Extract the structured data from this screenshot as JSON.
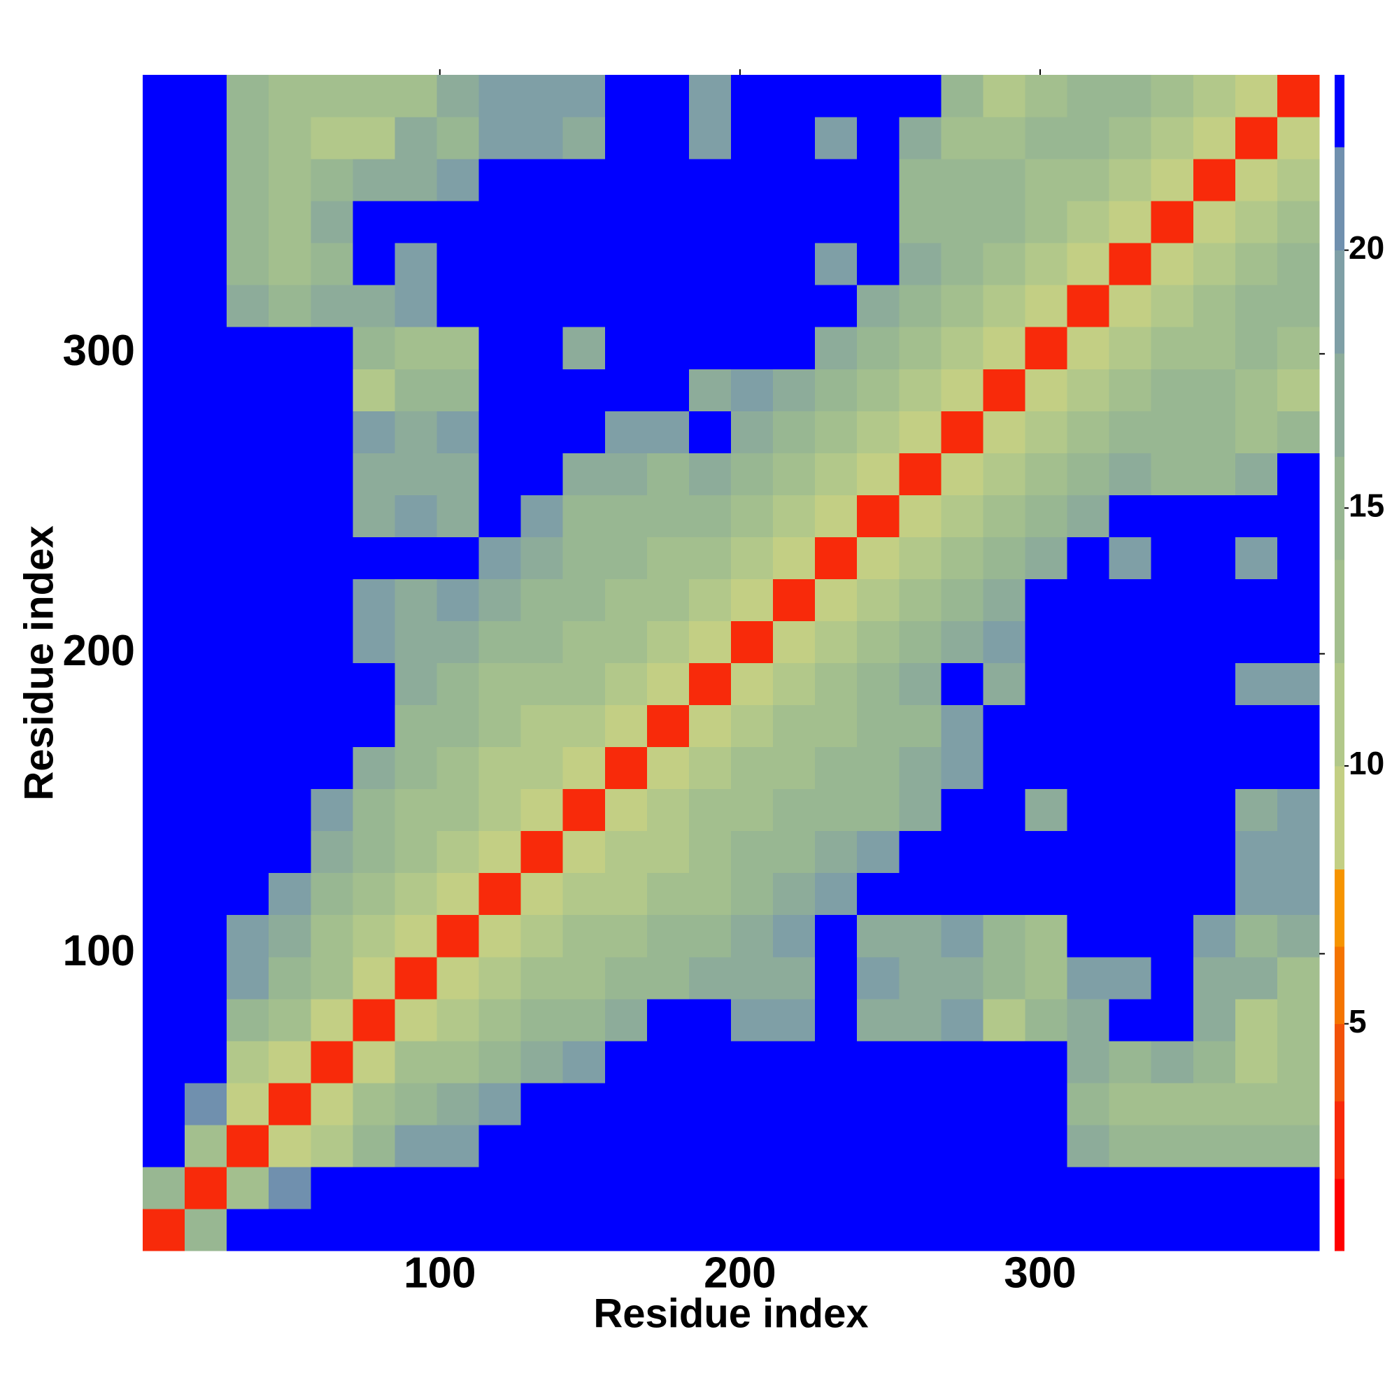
{
  "chart_data": {
    "type": "heatmap",
    "xlabel": "Residue index",
    "ylabel": "Residue index",
    "xlim": [
      1,
      393
    ],
    "ylim": [
      1,
      393
    ],
    "xticks": [
      100,
      200,
      300
    ],
    "yticks": [
      100,
      200,
      300
    ],
    "xbins": [
      1,
      15,
      29,
      43,
      57,
      71,
      85,
      99,
      113,
      127,
      141,
      155,
      169,
      183,
      197,
      211,
      225,
      239,
      253,
      267,
      281,
      295,
      309,
      323,
      337,
      351,
      365,
      379,
      393
    ],
    "ybins": [
      1,
      15,
      29,
      43,
      57,
      71,
      85,
      99,
      113,
      127,
      141,
      155,
      169,
      183,
      197,
      211,
      225,
      239,
      253,
      267,
      281,
      295,
      309,
      323,
      337,
      351,
      365,
      379,
      393
    ],
    "z": [
      [
        3,
        14,
        23,
        23,
        23,
        23,
        23,
        23,
        23,
        23,
        23,
        23,
        23,
        23,
        23,
        23,
        23,
        23,
        23,
        23,
        23,
        23,
        23,
        23,
        23,
        23,
        23,
        23
      ],
      [
        14,
        3,
        12,
        20,
        23,
        23,
        23,
        23,
        23,
        23,
        23,
        23,
        23,
        23,
        23,
        23,
        23,
        23,
        23,
        23,
        23,
        23,
        23,
        23,
        23,
        23,
        23,
        23
      ],
      [
        23,
        12,
        3,
        9,
        11,
        14,
        18,
        19,
        23,
        23,
        23,
        23,
        23,
        23,
        23,
        23,
        23,
        23,
        23,
        23,
        23,
        23,
        16,
        15,
        15,
        14,
        14,
        15
      ],
      [
        23,
        20,
        9,
        3,
        9,
        12,
        14,
        16,
        18,
        23,
        23,
        23,
        23,
        23,
        23,
        23,
        23,
        23,
        23,
        23,
        23,
        23,
        15,
        12,
        13,
        13,
        12,
        12
      ],
      [
        23,
        23,
        11,
        9,
        3,
        9,
        12,
        13,
        15,
        16,
        18,
        23,
        23,
        23,
        23,
        23,
        23,
        23,
        23,
        23,
        23,
        23,
        17,
        14,
        16,
        14,
        10,
        12
      ],
      [
        23,
        23,
        14,
        12,
        9,
        3,
        9,
        11,
        13,
        14,
        15,
        17,
        23,
        23,
        18,
        18,
        23,
        17,
        16,
        18,
        11,
        14,
        17,
        23,
        23,
        16,
        11,
        12
      ],
      [
        23,
        23,
        18,
        14,
        12,
        9,
        3,
        9,
        10,
        12,
        13,
        14,
        15,
        16,
        17,
        17,
        23,
        18,
        17,
        17,
        15,
        13,
        18,
        18,
        23,
        16,
        16,
        13
      ],
      [
        23,
        23,
        19,
        16,
        13,
        11,
        9,
        3,
        8,
        10,
        12,
        13,
        14,
        15,
        17,
        18,
        23,
        17,
        17,
        18,
        14,
        12,
        23,
        23,
        23,
        18,
        14,
        16
      ],
      [
        23,
        23,
        23,
        18,
        15,
        13,
        10,
        8,
        3,
        8,
        10,
        11,
        12,
        13,
        15,
        17,
        19,
        23,
        23,
        23,
        23,
        23,
        23,
        23,
        23,
        23,
        19,
        19
      ],
      [
        23,
        23,
        23,
        23,
        16,
        14,
        12,
        10,
        8,
        3,
        9,
        10,
        11,
        12,
        14,
        15,
        16,
        18,
        23,
        23,
        23,
        23,
        23,
        23,
        23,
        23,
        19,
        19
      ],
      [
        23,
        23,
        23,
        23,
        18,
        15,
        13,
        12,
        10,
        9,
        3,
        9,
        10,
        12,
        13,
        14,
        14,
        15,
        17,
        23,
        23,
        17,
        23,
        23,
        23,
        23,
        17,
        18
      ],
      [
        23,
        23,
        23,
        23,
        23,
        17,
        14,
        13,
        11,
        10,
        9,
        3,
        8,
        10,
        12,
        13,
        14,
        15,
        17,
        19,
        23,
        23,
        23,
        23,
        23,
        23,
        23,
        23
      ],
      [
        23,
        23,
        23,
        23,
        23,
        23,
        15,
        14,
        12,
        11,
        10,
        8,
        3,
        8,
        10,
        12,
        13,
        14,
        15,
        18,
        23,
        23,
        23,
        23,
        23,
        23,
        23,
        23
      ],
      [
        23,
        23,
        23,
        23,
        23,
        23,
        16,
        15,
        13,
        12,
        12,
        10,
        8,
        3,
        8,
        10,
        12,
        14,
        16,
        23,
        17,
        23,
        23,
        23,
        23,
        23,
        19,
        18
      ],
      [
        23,
        23,
        23,
        23,
        23,
        18,
        17,
        17,
        15,
        14,
        13,
        12,
        10,
        8,
        3,
        8,
        10,
        12,
        14,
        16,
        18,
        23,
        23,
        23,
        23,
        23,
        23,
        23
      ],
      [
        23,
        23,
        23,
        23,
        23,
        18,
        17,
        18,
        17,
        15,
        14,
        13,
        12,
        10,
        8,
        3,
        8,
        10,
        12,
        14,
        16,
        23,
        23,
        23,
        23,
        23,
        23,
        23
      ],
      [
        23,
        23,
        23,
        23,
        23,
        23,
        23,
        23,
        19,
        16,
        14,
        14,
        13,
        12,
        10,
        8,
        3,
        8,
        10,
        12,
        14,
        16,
        23,
        18,
        23,
        23,
        18,
        23
      ],
      [
        23,
        23,
        23,
        23,
        23,
        17,
        18,
        17,
        23,
        18,
        15,
        15,
        14,
        14,
        12,
        10,
        8,
        3,
        8,
        10,
        12,
        14,
        17,
        23,
        23,
        23,
        23,
        23
      ],
      [
        23,
        23,
        23,
        23,
        23,
        16,
        17,
        17,
        23,
        23,
        17,
        17,
        15,
        16,
        14,
        12,
        10,
        8,
        3,
        8,
        10,
        12,
        14,
        16,
        15,
        15,
        16,
        23
      ],
      [
        23,
        23,
        23,
        23,
        23,
        18,
        17,
        18,
        23,
        23,
        23,
        19,
        18,
        23,
        16,
        14,
        12,
        10,
        8,
        3,
        8,
        10,
        12,
        14,
        14,
        14,
        12,
        14
      ],
      [
        23,
        23,
        23,
        23,
        23,
        11,
        15,
        14,
        23,
        23,
        23,
        23,
        23,
        17,
        18,
        16,
        14,
        12,
        10,
        8,
        3,
        8,
        10,
        12,
        14,
        14,
        13,
        11
      ],
      [
        23,
        23,
        23,
        23,
        23,
        14,
        13,
        12,
        23,
        23,
        17,
        23,
        23,
        23,
        23,
        23,
        16,
        14,
        12,
        10,
        8,
        3,
        8,
        10,
        12,
        13,
        14,
        12
      ],
      [
        23,
        23,
        16,
        15,
        17,
        17,
        18,
        23,
        23,
        23,
        23,
        23,
        23,
        23,
        23,
        23,
        23,
        17,
        14,
        12,
        10,
        8,
        3,
        8,
        10,
        12,
        14,
        15
      ],
      [
        23,
        23,
        15,
        12,
        14,
        23,
        18,
        23,
        23,
        23,
        23,
        23,
        23,
        23,
        23,
        23,
        18,
        23,
        16,
        14,
        12,
        10,
        8,
        3,
        8,
        10,
        12,
        14
      ],
      [
        23,
        23,
        15,
        13,
        16,
        23,
        23,
        23,
        23,
        23,
        23,
        23,
        23,
        23,
        23,
        23,
        23,
        23,
        15,
        14,
        14,
        12,
        10,
        8,
        3,
        8,
        10,
        12
      ],
      [
        23,
        23,
        14,
        13,
        14,
        16,
        16,
        18,
        23,
        23,
        23,
        23,
        23,
        23,
        23,
        23,
        23,
        23,
        15,
        14,
        14,
        13,
        12,
        10,
        8,
        3,
        8,
        10
      ],
      [
        23,
        23,
        14,
        12,
        10,
        11,
        16,
        14,
        19,
        19,
        17,
        23,
        23,
        19,
        23,
        23,
        18,
        23,
        16,
        12,
        13,
        14,
        14,
        12,
        10,
        8,
        3,
        8
      ],
      [
        23,
        23,
        15,
        12,
        12,
        12,
        13,
        16,
        19,
        19,
        18,
        23,
        23,
        18,
        23,
        23,
        23,
        23,
        23,
        14,
        11,
        12,
        15,
        14,
        12,
        10,
        8,
        3
      ]
    ],
    "colorbar": {
      "lim": [
        0.6,
        23.4
      ],
      "ticks": [
        5,
        10,
        15,
        20
      ],
      "levels": [
        0.6,
        2,
        3.5,
        5,
        6.5,
        8,
        10,
        12,
        14,
        16,
        18,
        20,
        22,
        23.4
      ],
      "colors": [
        "#ff0000",
        "#f82a0a",
        "#f25208",
        "#f47400",
        "#f69400",
        "#c3cf84",
        "#b2c88a",
        "#a3bf8e",
        "#98b792",
        "#8dac9a",
        "#7f9fa6",
        "#7090ae",
        "#0000ff"
      ]
    }
  }
}
